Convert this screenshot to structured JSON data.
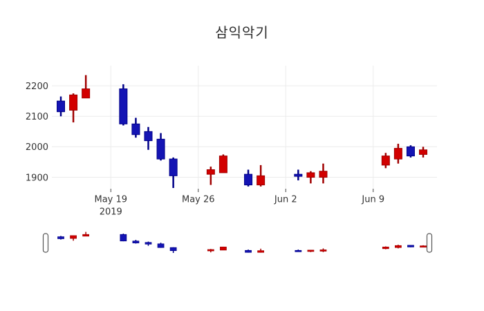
{
  "title": "삼익악기",
  "chart_data": {
    "type": "candlestick",
    "title": "삼익악기",
    "xlabel": "",
    "ylabel": "",
    "grid": true,
    "legend": "none",
    "ylim": [
      1865,
      2266
    ],
    "y_ticks": [
      1900,
      2000,
      2100,
      2200
    ],
    "x_ticks": [
      {
        "label": "May 19",
        "sub": "2019",
        "date": "2019-05-19"
      },
      {
        "label": "May 26",
        "sub": "",
        "date": "2019-05-26"
      },
      {
        "label": "Jun 2",
        "sub": "",
        "date": "2019-06-02"
      },
      {
        "label": "Jun 9",
        "sub": "",
        "date": "2019-06-09"
      }
    ],
    "colors": {
      "increasing_fill": "#D20000",
      "increasing_line": "#A00000",
      "decreasing_fill": "#1414B4",
      "decreasing_line": "#000088",
      "grid": "#EBEBEB",
      "tick_text": "#333333",
      "tick_mark": "#444444",
      "slider_handle_border": "#555555",
      "slider_handle_fill": "#FFFFFF",
      "background": "#FFFFFF"
    },
    "candles": [
      {
        "date": "2019-05-15",
        "open": 2150,
        "high": 2165,
        "low": 2100,
        "close": 2115
      },
      {
        "date": "2019-05-16",
        "open": 2120,
        "high": 2175,
        "low": 2080,
        "close": 2170
      },
      {
        "date": "2019-05-17",
        "open": 2160,
        "high": 2235,
        "low": 2160,
        "close": 2190
      },
      {
        "date": "2019-05-20",
        "open": 2190,
        "high": 2205,
        "low": 2070,
        "close": 2075
      },
      {
        "date": "2019-05-21",
        "open": 2075,
        "high": 2095,
        "low": 2030,
        "close": 2040
      },
      {
        "date": "2019-05-22",
        "open": 2050,
        "high": 2065,
        "low": 1990,
        "close": 2020
      },
      {
        "date": "2019-05-23",
        "open": 2025,
        "high": 2045,
        "low": 1955,
        "close": 1960
      },
      {
        "date": "2019-05-24",
        "open": 1960,
        "high": 1965,
        "low": 1865,
        "close": 1905
      },
      {
        "date": "2019-05-27",
        "open": 1910,
        "high": 1935,
        "low": 1875,
        "close": 1925
      },
      {
        "date": "2019-05-28",
        "open": 1915,
        "high": 1975,
        "low": 1915,
        "close": 1970
      },
      {
        "date": "2019-05-30",
        "open": 1910,
        "high": 1925,
        "low": 1870,
        "close": 1875
      },
      {
        "date": "2019-05-31",
        "open": 1875,
        "high": 1940,
        "low": 1870,
        "close": 1905
      },
      {
        "date": "2019-06-03",
        "open": 1910,
        "high": 1925,
        "low": 1890,
        "close": 1905
      },
      {
        "date": "2019-06-04",
        "open": 1900,
        "high": 1920,
        "low": 1880,
        "close": 1915
      },
      {
        "date": "2019-06-05",
        "open": 1900,
        "high": 1945,
        "low": 1880,
        "close": 1920
      },
      {
        "date": "2019-06-10",
        "open": 1940,
        "high": 1980,
        "low": 1930,
        "close": 1970
      },
      {
        "date": "2019-06-11",
        "open": 1960,
        "high": 2010,
        "low": 1945,
        "close": 1995
      },
      {
        "date": "2019-06-12",
        "open": 2000,
        "high": 2005,
        "low": 1965,
        "close": 1970
      },
      {
        "date": "2019-06-13",
        "open": 1975,
        "high": 2000,
        "low": 1965,
        "close": 1990
      }
    ]
  }
}
